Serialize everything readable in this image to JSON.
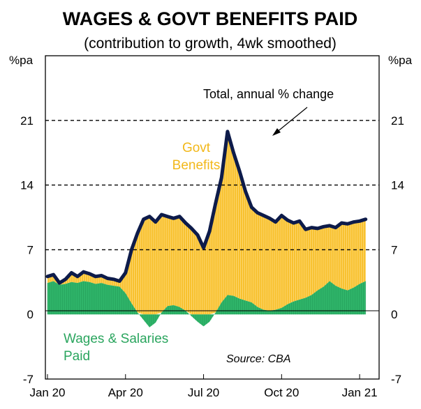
{
  "chart_data": {
    "type": "area",
    "title": "WAGES & GOVT BENEFITS PAID",
    "subtitle": "(contribution to growth, 4wk smoothed)",
    "ylabel_left": "%pa",
    "ylabel_right": "%pa",
    "ylim": [
      -7,
      28
    ],
    "yticks": [
      "21",
      "14",
      "7",
      "0",
      "-7"
    ],
    "ytick_values": [
      21,
      14,
      7,
      0,
      -7
    ],
    "dashed_gridlines": [
      21,
      14,
      7
    ],
    "x_tick_labels": [
      "Jan 20",
      "Apr 20",
      "Jul 20",
      "Oct 20",
      "Jan 21"
    ],
    "x_tick_weeks": [
      0,
      13,
      26,
      39,
      52
    ],
    "x_range_weeks": [
      0,
      53.5
    ],
    "series": [
      {
        "name": "Wages & Salaries Paid",
        "color": "#2fb56a",
        "x_weeks": [
          0,
          1,
          2,
          3,
          4,
          5,
          6,
          7,
          8,
          9,
          10,
          11,
          12,
          13,
          14,
          15,
          16,
          17,
          18,
          19,
          20,
          21,
          22,
          23,
          24,
          25,
          26,
          27,
          28,
          29,
          30,
          31,
          32,
          33,
          34,
          35,
          36,
          37,
          38,
          39,
          40,
          41,
          42,
          43,
          44,
          45,
          46,
          47,
          48,
          49,
          50,
          51,
          52,
          53
        ],
        "values": [
          3.4,
          3.6,
          3.2,
          3.3,
          3.5,
          3.4,
          3.6,
          3.5,
          3.3,
          3.4,
          3.2,
          3.1,
          3.0,
          2.3,
          1.2,
          0.2,
          -0.6,
          -1.4,
          -0.9,
          0.2,
          0.9,
          1.0,
          0.8,
          0.4,
          -0.2,
          -0.8,
          -1.3,
          -0.8,
          0.2,
          1.3,
          2.1,
          2.0,
          1.7,
          1.5,
          1.3,
          0.8,
          0.5,
          0.4,
          0.5,
          0.7,
          1.1,
          1.4,
          1.6,
          1.8,
          2.1,
          2.6,
          3.0,
          3.6,
          3.1,
          2.8,
          2.6,
          2.9,
          3.3,
          3.6
        ]
      },
      {
        "name": "Govt Benefits",
        "color": "#f8c12e",
        "note": "Stacked on wages; top of yellow equals the total line"
      },
      {
        "name": "Total, annual % change",
        "color": "#0d1b4a",
        "x_weeks": [
          0,
          1,
          2,
          3,
          4,
          5,
          6,
          7,
          8,
          9,
          10,
          11,
          12,
          13,
          14,
          15,
          16,
          17,
          18,
          19,
          20,
          21,
          22,
          23,
          24,
          25,
          26,
          27,
          28,
          29,
          30,
          31,
          32,
          33,
          34,
          35,
          36,
          37,
          38,
          39,
          40,
          41,
          42,
          43,
          44,
          45,
          46,
          47,
          48,
          49,
          50,
          51,
          52,
          53
        ],
        "values": [
          4.1,
          4.3,
          3.4,
          3.8,
          4.5,
          4.1,
          4.6,
          4.4,
          4.1,
          4.2,
          3.9,
          3.8,
          3.6,
          4.5,
          7.0,
          8.8,
          10.3,
          10.6,
          10.0,
          10.8,
          10.6,
          10.4,
          10.6,
          9.9,
          9.3,
          8.6,
          7.2,
          9.0,
          12.0,
          14.8,
          19.8,
          17.5,
          15.5,
          13.3,
          11.6,
          11.0,
          10.7,
          10.4,
          10.0,
          10.7,
          10.2,
          9.9,
          10.1,
          9.2,
          9.4,
          9.3,
          9.5,
          9.6,
          9.4,
          9.9,
          9.8,
          10.0,
          10.1,
          10.3
        ]
      }
    ],
    "annotations": {
      "total_label": "Total, annual % change",
      "govt_label_line1": "Govt",
      "govt_label_line2": "Benefits",
      "wages_label_line1": "Wages & Salaries",
      "wages_label_line2": "Paid",
      "source": "Source: CBA"
    },
    "colors": {
      "wages": "#2fb56a",
      "wages_hatch": "#1e9150",
      "benefits": "#f8c12e",
      "benefits_hatch": "#ffe49a",
      "total": "#0d1b4a",
      "govt_text": "#f2b81a",
      "wages_text": "#2aa55e"
    }
  }
}
